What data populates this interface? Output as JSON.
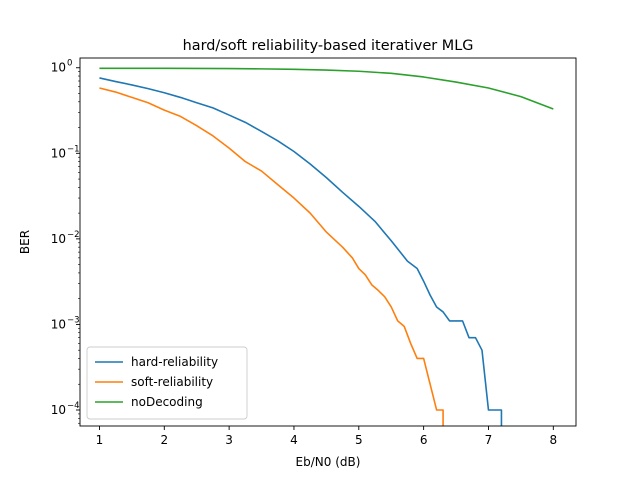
{
  "chart_data": {
    "type": "line",
    "title": "hard/soft reliability-based iterativer MLG",
    "xlabel": "Eb/N0 (dB)",
    "ylabel": "BER",
    "xlim": [
      0.7,
      8.35
    ],
    "ylim": [
      6.5e-05,
      1.3
    ],
    "yscale": "log",
    "xticks": [
      1,
      2,
      3,
      4,
      5,
      6,
      7,
      8
    ],
    "xtick_labels": [
      "1",
      "2",
      "3",
      "4",
      "5",
      "6",
      "7",
      "8"
    ],
    "yticks": [
      1,
      0.1,
      0.01,
      0.001,
      0.0001
    ],
    "ytick_labels": [
      {
        "base": "10",
        "exp": "0"
      },
      {
        "base": "10",
        "exp": "−1"
      },
      {
        "base": "10",
        "exp": "−2"
      },
      {
        "base": "10",
        "exp": "−3"
      },
      {
        "base": "10",
        "exp": "−4"
      }
    ],
    "grid": false,
    "legend_position": "lower-left",
    "series": [
      {
        "name": "hard-reliability",
        "color": "#1f77b4",
        "x": [
          1,
          1.25,
          1.5,
          1.75,
          2,
          2.25,
          2.5,
          2.75,
          3,
          3.25,
          3.5,
          3.75,
          4,
          4.25,
          4.5,
          4.75,
          5,
          5.25,
          5.5,
          5.75,
          5.9,
          6,
          6.1,
          6.2,
          6.3,
          6.4,
          6.5,
          6.6,
          6.7,
          6.8,
          6.9,
          7,
          7.1,
          7.2,
          7.2
        ],
        "y": [
          0.76,
          0.69,
          0.63,
          0.57,
          0.51,
          0.45,
          0.39,
          0.34,
          0.28,
          0.23,
          0.18,
          0.14,
          0.105,
          0.075,
          0.052,
          0.035,
          0.024,
          0.016,
          0.0095,
          0.0055,
          0.0045,
          0.0032,
          0.0022,
          0.0016,
          0.0014,
          0.0011,
          0.0011,
          0.0011,
          0.0007,
          0.0007,
          0.0005,
          0.0001,
          0.0001,
          0.0001,
          1e-05
        ]
      },
      {
        "name": "soft-reliability",
        "color": "#ff7f0e",
        "x": [
          1,
          1.25,
          1.5,
          1.75,
          2,
          2.25,
          2.5,
          2.75,
          3,
          3.25,
          3.5,
          3.75,
          4,
          4.25,
          4.5,
          4.75,
          4.9,
          5,
          5.1,
          5.2,
          5.3,
          5.4,
          5.5,
          5.6,
          5.7,
          5.8,
          5.9,
          6,
          6.1,
          6.2,
          6.3,
          6.3
        ],
        "y": [
          0.58,
          0.52,
          0.45,
          0.39,
          0.32,
          0.27,
          0.21,
          0.16,
          0.115,
          0.08,
          0.062,
          0.043,
          0.03,
          0.02,
          0.012,
          0.008,
          0.006,
          0.0045,
          0.0038,
          0.0029,
          0.0025,
          0.0021,
          0.0016,
          0.0011,
          0.00095,
          0.0006,
          0.0004,
          0.0004,
          0.0002,
          0.0001,
          0.0001,
          1e-05
        ]
      },
      {
        "name": "noDecoding",
        "color": "#2ca02c",
        "x": [
          1,
          1.5,
          2,
          2.5,
          3,
          3.5,
          4,
          4.5,
          5,
          5.5,
          6,
          6.5,
          7,
          7.5,
          8
        ],
        "y": [
          0.985,
          0.986,
          0.985,
          0.982,
          0.978,
          0.97,
          0.958,
          0.94,
          0.91,
          0.86,
          0.78,
          0.68,
          0.58,
          0.46,
          0.33
        ]
      }
    ]
  }
}
